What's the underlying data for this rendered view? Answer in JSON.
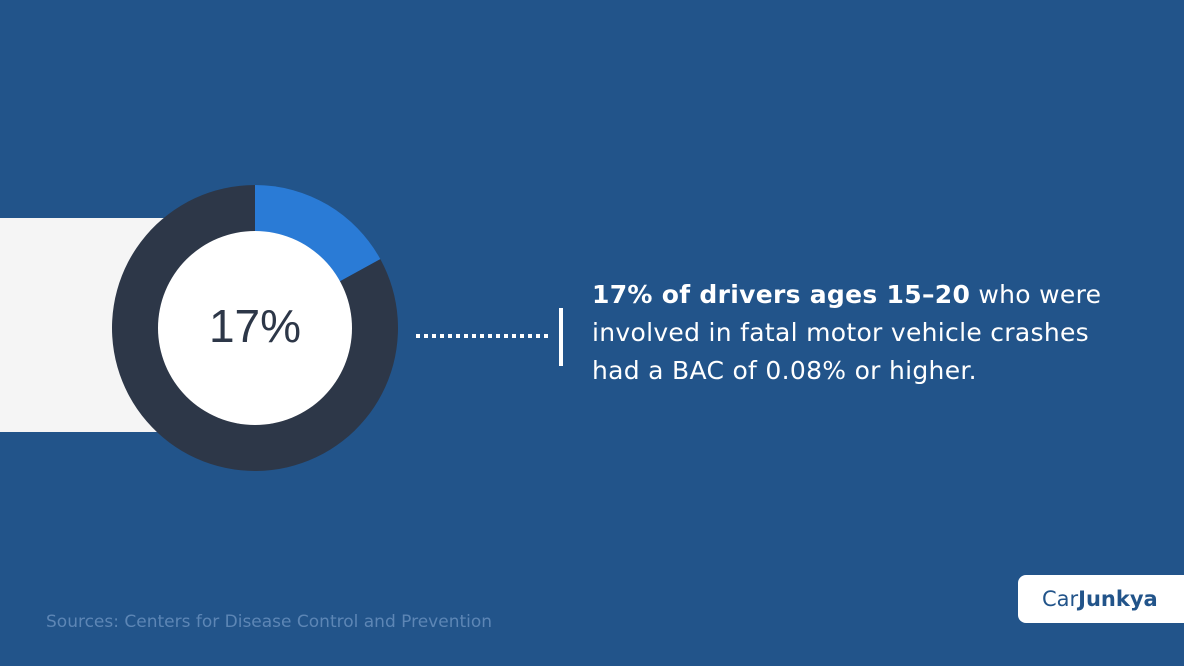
{
  "chart_data": {
    "type": "donut",
    "values": [
      17,
      83
    ],
    "value_labels": [
      "17%",
      null
    ],
    "colors": [
      "#2a7bd6",
      "#2d3748"
    ]
  },
  "description": {
    "bold": "17% of drivers ages 15–20",
    "text": " who were involved in fatal motor vehicle crashes had a BAC of 0.08% or higher."
  },
  "source": "Sources: Centers for Disease Control and Prevention",
  "logo": {
    "light": "Car",
    "bold": "Junkya"
  }
}
